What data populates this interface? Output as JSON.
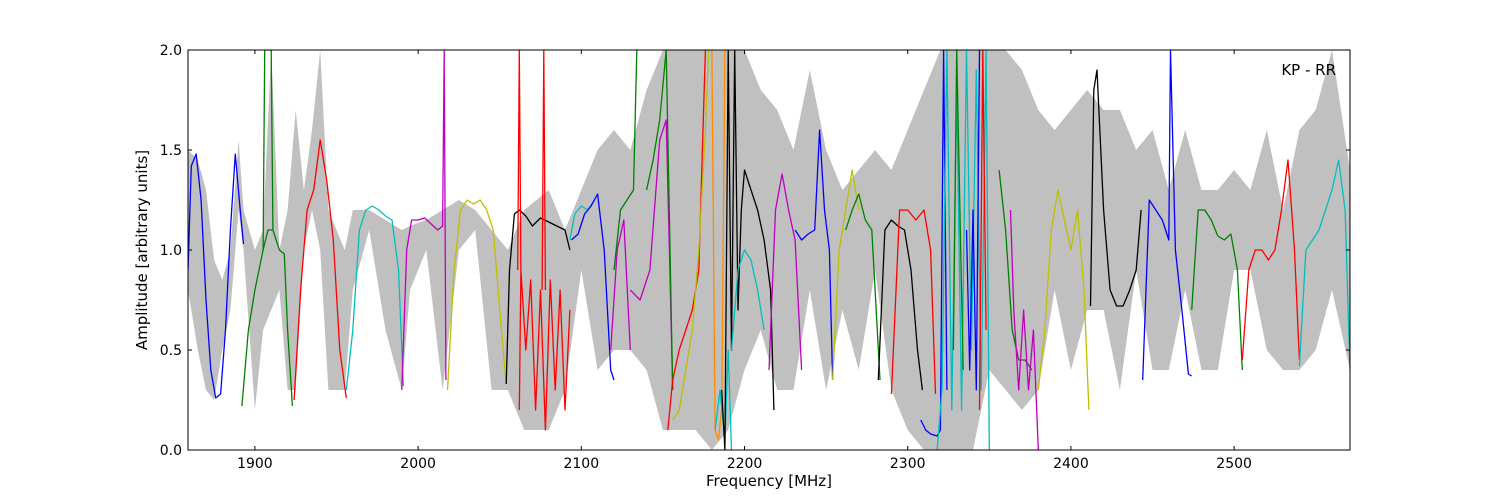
{
  "chart_data": {
    "type": "line",
    "title": "",
    "annotation": "KP - RR",
    "xlabel": "Frequency [MHz]",
    "ylabel": "Amplitude [arbitrary units]",
    "xlim": [
      1859,
      2571
    ],
    "ylim": [
      0.0,
      2.0
    ],
    "xticks": [
      1900,
      2000,
      2100,
      2200,
      2300,
      2400,
      2500
    ],
    "xtick_labels": [
      "1900",
      "2000",
      "2100",
      "2200",
      "2300",
      "2400",
      "2500"
    ],
    "yticks": [
      0.0,
      0.5,
      1.0,
      1.5,
      2.0
    ],
    "ytick_labels": [
      "0.0",
      "0.5",
      "1.0",
      "1.5",
      "2.0"
    ],
    "grid": false,
    "legend": "none",
    "background": {
      "name": "envelope",
      "color": "#c0c0c0",
      "x": [
        1859,
        1865,
        1870,
        1875,
        1880,
        1885,
        1890,
        1893,
        1900,
        1905,
        1910,
        1915,
        1920,
        1925,
        1930,
        1935,
        1940,
        1945,
        1955,
        1960,
        1970,
        1980,
        1990,
        1995,
        2005,
        2015,
        2025,
        2035,
        2045,
        2055,
        2065,
        2080,
        2090,
        2100,
        2110,
        2120,
        2130,
        2140,
        2150,
        2160,
        2170,
        2180,
        2190,
        2200,
        2210,
        2220,
        2230,
        2240,
        2250,
        2260,
        2270,
        2280,
        2290,
        2300,
        2310,
        2320,
        2330,
        2340,
        2350,
        2360,
        2370,
        2380,
        2390,
        2400,
        2410,
        2420,
        2430,
        2440,
        2450,
        2460,
        2470,
        2480,
        2490,
        2500,
        2510,
        2520,
        2530,
        2540,
        2550,
        2560,
        2571
      ],
      "upper": [
        1.5,
        1.45,
        1.3,
        0.95,
        0.85,
        1.0,
        1.55,
        1.2,
        1.0,
        1.1,
        2.0,
        1.0,
        1.2,
        1.7,
        1.3,
        1.6,
        2.0,
        1.2,
        1.0,
        1.2,
        1.2,
        1.15,
        1.1,
        1.12,
        1.15,
        1.2,
        1.25,
        1.2,
        1.1,
        1.0,
        1.2,
        1.3,
        1.1,
        1.3,
        1.5,
        1.6,
        1.5,
        1.8,
        2.0,
        2.0,
        2.0,
        2.0,
        2.0,
        2.0,
        1.8,
        1.7,
        1.5,
        1.9,
        1.5,
        1.3,
        1.4,
        1.5,
        1.4,
        1.6,
        1.8,
        2.0,
        2.0,
        2.0,
        2.0,
        2.0,
        1.9,
        1.7,
        1.6,
        1.7,
        1.8,
        1.7,
        1.7,
        1.5,
        1.6,
        1.3,
        1.6,
        1.3,
        1.3,
        1.4,
        1.3,
        1.6,
        1.2,
        1.6,
        1.7,
        2.0,
        1.4
      ],
      "lower": [
        0.8,
        0.5,
        0.3,
        0.25,
        0.5,
        0.7,
        1.2,
        1.0,
        0.2,
        0.6,
        0.7,
        0.8,
        0.3,
        0.3,
        1.0,
        1.2,
        1.0,
        0.3,
        0.3,
        0.8,
        1.1,
        0.6,
        0.3,
        0.8,
        1.0,
        0.3,
        1.0,
        1.1,
        0.3,
        0.3,
        0.1,
        0.1,
        0.3,
        0.9,
        0.4,
        0.5,
        0.5,
        0.4,
        0.1,
        0.1,
        0.1,
        0.0,
        0.1,
        0.4,
        0.6,
        0.3,
        0.3,
        0.8,
        0.3,
        0.7,
        0.4,
        0.9,
        0.3,
        0.1,
        0.0,
        0.0,
        0.0,
        0.0,
        0.4,
        0.3,
        0.2,
        0.3,
        0.8,
        0.4,
        0.7,
        0.7,
        0.3,
        0.9,
        0.4,
        0.4,
        0.8,
        0.4,
        0.4,
        0.9,
        0.9,
        0.5,
        0.4,
        0.4,
        0.5,
        0.8,
        0.4
      ]
    },
    "series": [
      {
        "color": "#0000ff",
        "x": [
          1859,
          1861,
          1864,
          1867,
          1870,
          1873,
          1876,
          1879,
          1882,
          1885,
          1888,
          1891,
          1893
        ],
        "y": [
          0.9,
          1.42,
          1.48,
          1.25,
          0.75,
          0.4,
          0.26,
          0.28,
          0.6,
          1.1,
          1.48,
          1.2,
          1.03
        ]
      },
      {
        "color": "#008000",
        "x": [
          1892,
          1896,
          1900,
          1905,
          1908,
          1911,
          1915,
          1918,
          1920,
          1923
        ],
        "y": [
          0.22,
          0.6,
          0.8,
          1.0,
          1.1,
          1.1,
          1.0,
          0.98,
          0.6,
          0.22
        ]
      },
      {
        "color": "#008000",
        "x": [
          1905,
          1906,
          1908,
          1910,
          1911
        ],
        "y": [
          1.0,
          2.0,
          2.0,
          2.0,
          1.1
        ]
      },
      {
        "color": "#ff0000",
        "x": [
          1924,
          1928,
          1932,
          1936,
          1940,
          1944,
          1948,
          1952,
          1956
        ],
        "y": [
          0.25,
          0.8,
          1.2,
          1.3,
          1.55,
          1.35,
          1.05,
          0.5,
          0.26
        ]
      },
      {
        "color": "#00bfbf",
        "x": [
          1956,
          1960,
          1964,
          1968,
          1972,
          1976,
          1980,
          1984,
          1988,
          1991
        ],
        "y": [
          0.3,
          0.6,
          1.1,
          1.2,
          1.22,
          1.2,
          1.17,
          1.15,
          0.9,
          0.32
        ]
      },
      {
        "color": "#bf00bf",
        "x": [
          1990,
          1993,
          1996,
          2000,
          2004,
          2008,
          2012,
          2015,
          2016,
          2017
        ],
        "y": [
          0.3,
          1.0,
          1.15,
          1.15,
          1.16,
          1.13,
          1.1,
          1.12,
          2.0,
          0.35
        ]
      },
      {
        "color": "#bfbf00",
        "x": [
          2018,
          2022,
          2026,
          2030,
          2034,
          2038,
          2042,
          2046,
          2050,
          2054
        ],
        "y": [
          0.3,
          0.9,
          1.2,
          1.25,
          1.23,
          1.25,
          1.2,
          1.1,
          0.7,
          0.33
        ]
      },
      {
        "color": "#000000",
        "x": [
          2054,
          2056,
          2059,
          2062,
          2066,
          2070,
          2075,
          2080,
          2085,
          2090,
          2093
        ],
        "y": [
          0.33,
          0.9,
          1.18,
          1.2,
          1.17,
          1.12,
          1.16,
          1.14,
          1.12,
          1.1,
          1.0
        ]
      },
      {
        "color": "#ff0000",
        "x": [
          2062,
          2063,
          2066,
          2069,
          2072,
          2075,
          2078,
          2081,
          2084,
          2087,
          2090,
          2093
        ],
        "y": [
          0.2,
          0.9,
          0.5,
          0.85,
          0.2,
          0.8,
          0.1,
          0.85,
          0.3,
          0.8,
          0.2,
          0.7
        ]
      },
      {
        "color": "#ff0000",
        "x": [
          2061,
          2062,
          2063
        ],
        "y": [
          0.9,
          2.0,
          0.9
        ]
      },
      {
        "color": "#ff0000",
        "x": [
          2076,
          2077,
          2078
        ],
        "y": [
          0.8,
          2.0,
          0.8
        ]
      },
      {
        "color": "#00bfbf",
        "x": [
          2093,
          2096,
          2100,
          2104,
          2108
        ],
        "y": [
          1.05,
          1.18,
          1.22,
          1.2,
          1.25
        ]
      },
      {
        "color": "#0000ff",
        "x": [
          2094,
          2098,
          2102,
          2106,
          2110,
          2114,
          2118,
          2120
        ],
        "y": [
          1.05,
          1.08,
          1.18,
          1.22,
          1.28,
          1.0,
          0.4,
          0.35
        ]
      },
      {
        "color": "#bf00bf",
        "x": [
          2118,
          2122,
          2126,
          2130
        ],
        "y": [
          0.5,
          1.0,
          1.15,
          0.5
        ]
      },
      {
        "color": "#008000",
        "x": [
          2120,
          2124,
          2128,
          2132,
          2134
        ],
        "y": [
          0.9,
          1.2,
          1.25,
          1.3,
          2.0
        ]
      },
      {
        "color": "#bf00bf",
        "x": [
          2130,
          2136,
          2142,
          2148,
          2152,
          2154,
          2156
        ],
        "y": [
          0.8,
          0.75,
          0.9,
          1.55,
          1.65,
          1.0,
          0.3
        ]
      },
      {
        "color": "#008000",
        "x": [
          2140,
          2144,
          2148,
          2152,
          2156
        ],
        "y": [
          1.3,
          1.45,
          1.65,
          2.0,
          0.3
        ]
      },
      {
        "color": "#ff0000",
        "x": [
          2153,
          2156,
          2160,
          2164,
          2168,
          2172,
          2176
        ],
        "y": [
          0.1,
          0.35,
          0.5,
          0.6,
          0.7,
          0.9,
          2.0
        ]
      },
      {
        "color": "#bfbf00",
        "x": [
          2156,
          2160,
          2164,
          2168,
          2172,
          2176,
          2178
        ],
        "y": [
          0.15,
          0.2,
          0.4,
          0.6,
          1.0,
          1.6,
          2.0
        ]
      },
      {
        "color": "#ff8c00",
        "x": [
          2180,
          2182,
          2184,
          2186,
          2188
        ],
        "y": [
          2.0,
          0.1,
          0.05,
          0.2,
          2.0
        ]
      },
      {
        "color": "#00bfbf",
        "x": [
          2182,
          2185,
          2188,
          2190,
          2192
        ],
        "y": [
          0.1,
          0.3,
          0.05,
          0.5,
          0.0
        ]
      },
      {
        "color": "#000000",
        "x": [
          2186,
          2188,
          2190,
          2192,
          2194,
          2196,
          2198,
          2200,
          2204,
          2208,
          2212,
          2216,
          2218
        ],
        "y": [
          0.3,
          0.0,
          2.0,
          0.5,
          2.0,
          0.7,
          1.2,
          1.4,
          1.3,
          1.2,
          1.05,
          0.8,
          0.2
        ]
      },
      {
        "color": "#00bfbf",
        "x": [
          2192,
          2196,
          2200,
          2204,
          2208,
          2212
        ],
        "y": [
          0.5,
          0.9,
          1.0,
          0.95,
          0.8,
          0.6
        ]
      },
      {
        "color": "#bf00bf",
        "x": [
          2215,
          2219,
          2223,
          2227,
          2231,
          2235
        ],
        "y": [
          0.4,
          1.2,
          1.38,
          1.2,
          1.05,
          0.4
        ]
      },
      {
        "color": "#0000ff",
        "x": [
          2231,
          2235,
          2239,
          2243,
          2246,
          2249,
          2252,
          2254
        ],
        "y": [
          1.1,
          1.05,
          1.08,
          1.1,
          1.6,
          1.2,
          1.0,
          0.35
        ]
      },
      {
        "color": "#bfbf00",
        "x": [
          2254,
          2258,
          2262,
          2266,
          2270
        ],
        "y": [
          0.35,
          1.0,
          1.2,
          1.4,
          1.2
        ]
      },
      {
        "color": "#008000",
        "x": [
          2262,
          2266,
          2270,
          2274,
          2278,
          2283
        ],
        "y": [
          1.1,
          1.2,
          1.28,
          1.15,
          1.1,
          0.35
        ]
      },
      {
        "color": "#000000",
        "x": [
          2282,
          2286,
          2290,
          2294,
          2298,
          2302,
          2306,
          2309
        ],
        "y": [
          0.35,
          1.1,
          1.15,
          1.12,
          1.1,
          0.9,
          0.5,
          0.3
        ]
      },
      {
        "color": "#ff0000",
        "x": [
          2290,
          2295,
          2300,
          2305,
          2310,
          2314,
          2317
        ],
        "y": [
          0.28,
          1.2,
          1.2,
          1.15,
          1.2,
          1.0,
          0.28
        ]
      },
      {
        "color": "#0000ff",
        "x": [
          2308,
          2311,
          2314,
          2318,
          2320,
          2322,
          2324
        ],
        "y": [
          0.15,
          0.1,
          0.08,
          0.07,
          0.1,
          2.0,
          0.3
        ]
      },
      {
        "color": "#00bfbf",
        "x": [
          2318,
          2321,
          2324,
          2327,
          2330,
          2333,
          2336,
          2339,
          2342,
          2345,
          2348,
          2350
        ],
        "y": [
          0.0,
          0.3,
          2.0,
          0.2,
          1.8,
          0.2,
          2.0,
          0.5,
          1.9,
          0.3,
          2.0,
          0.0
        ]
      },
      {
        "color": "#008000",
        "x": [
          2328,
          2330,
          2332,
          2334
        ],
        "y": [
          0.5,
          2.0,
          1.2,
          0.4
        ]
      },
      {
        "color": "#0000ff",
        "x": [
          2336,
          2338,
          2340,
          2342,
          2344
        ],
        "y": [
          1.1,
          0.4,
          1.2,
          0.3,
          2.0
        ]
      },
      {
        "color": "#ff0000",
        "x": [
          2344,
          2346,
          2348
        ],
        "y": [
          0.2,
          2.0,
          0.6
        ]
      },
      {
        "color": "#008000",
        "x": [
          2356,
          2360,
          2364,
          2368,
          2372,
          2376
        ],
        "y": [
          1.4,
          1.1,
          0.6,
          0.45,
          0.45,
          0.4
        ]
      },
      {
        "color": "#bf00bf",
        "x": [
          2363,
          2365,
          2368,
          2371,
          2374,
          2377,
          2379,
          2380
        ],
        "y": [
          1.2,
          0.7,
          0.3,
          0.7,
          0.3,
          0.6,
          0.2,
          0.0
        ]
      },
      {
        "color": "#bfbf00",
        "x": [
          2380,
          2384,
          2388,
          2392,
          2396,
          2400,
          2404,
          2408,
          2411
        ],
        "y": [
          0.3,
          0.6,
          1.1,
          1.3,
          1.15,
          1.0,
          1.2,
          0.8,
          0.2
        ]
      },
      {
        "color": "#000000",
        "x": [
          2412,
          2414,
          2416,
          2420,
          2424,
          2428,
          2432,
          2436,
          2440,
          2443
        ],
        "y": [
          0.72,
          1.8,
          1.9,
          1.2,
          0.8,
          0.72,
          0.72,
          0.8,
          0.9,
          1.2
        ]
      },
      {
        "color": "#0000ff",
        "x": [
          2444,
          2448,
          2452,
          2456,
          2460,
          2461,
          2464,
          2468,
          2472,
          2474
        ],
        "y": [
          0.35,
          1.25,
          1.2,
          1.15,
          1.05,
          2.0,
          1.0,
          0.7,
          0.38,
          0.37
        ]
      },
      {
        "color": "#008000",
        "x": [
          2474,
          2478,
          2482,
          2486,
          2490,
          2494,
          2498,
          2502,
          2505
        ],
        "y": [
          0.7,
          1.2,
          1.2,
          1.15,
          1.07,
          1.05,
          1.08,
          0.9,
          0.4
        ]
      },
      {
        "color": "#ff0000",
        "x": [
          2505,
          2509,
          2513,
          2517,
          2521,
          2525,
          2529,
          2533,
          2537,
          2540
        ],
        "y": [
          0.45,
          0.9,
          1.0,
          1.0,
          0.95,
          1.0,
          1.2,
          1.45,
          1.0,
          0.45
        ]
      },
      {
        "color": "#00bfbf",
        "x": [
          2540,
          2544,
          2548,
          2552,
          2556,
          2560,
          2564,
          2568,
          2571
        ],
        "y": [
          0.42,
          1.0,
          1.05,
          1.1,
          1.2,
          1.3,
          1.45,
          1.2,
          0.4
        ]
      }
    ]
  }
}
